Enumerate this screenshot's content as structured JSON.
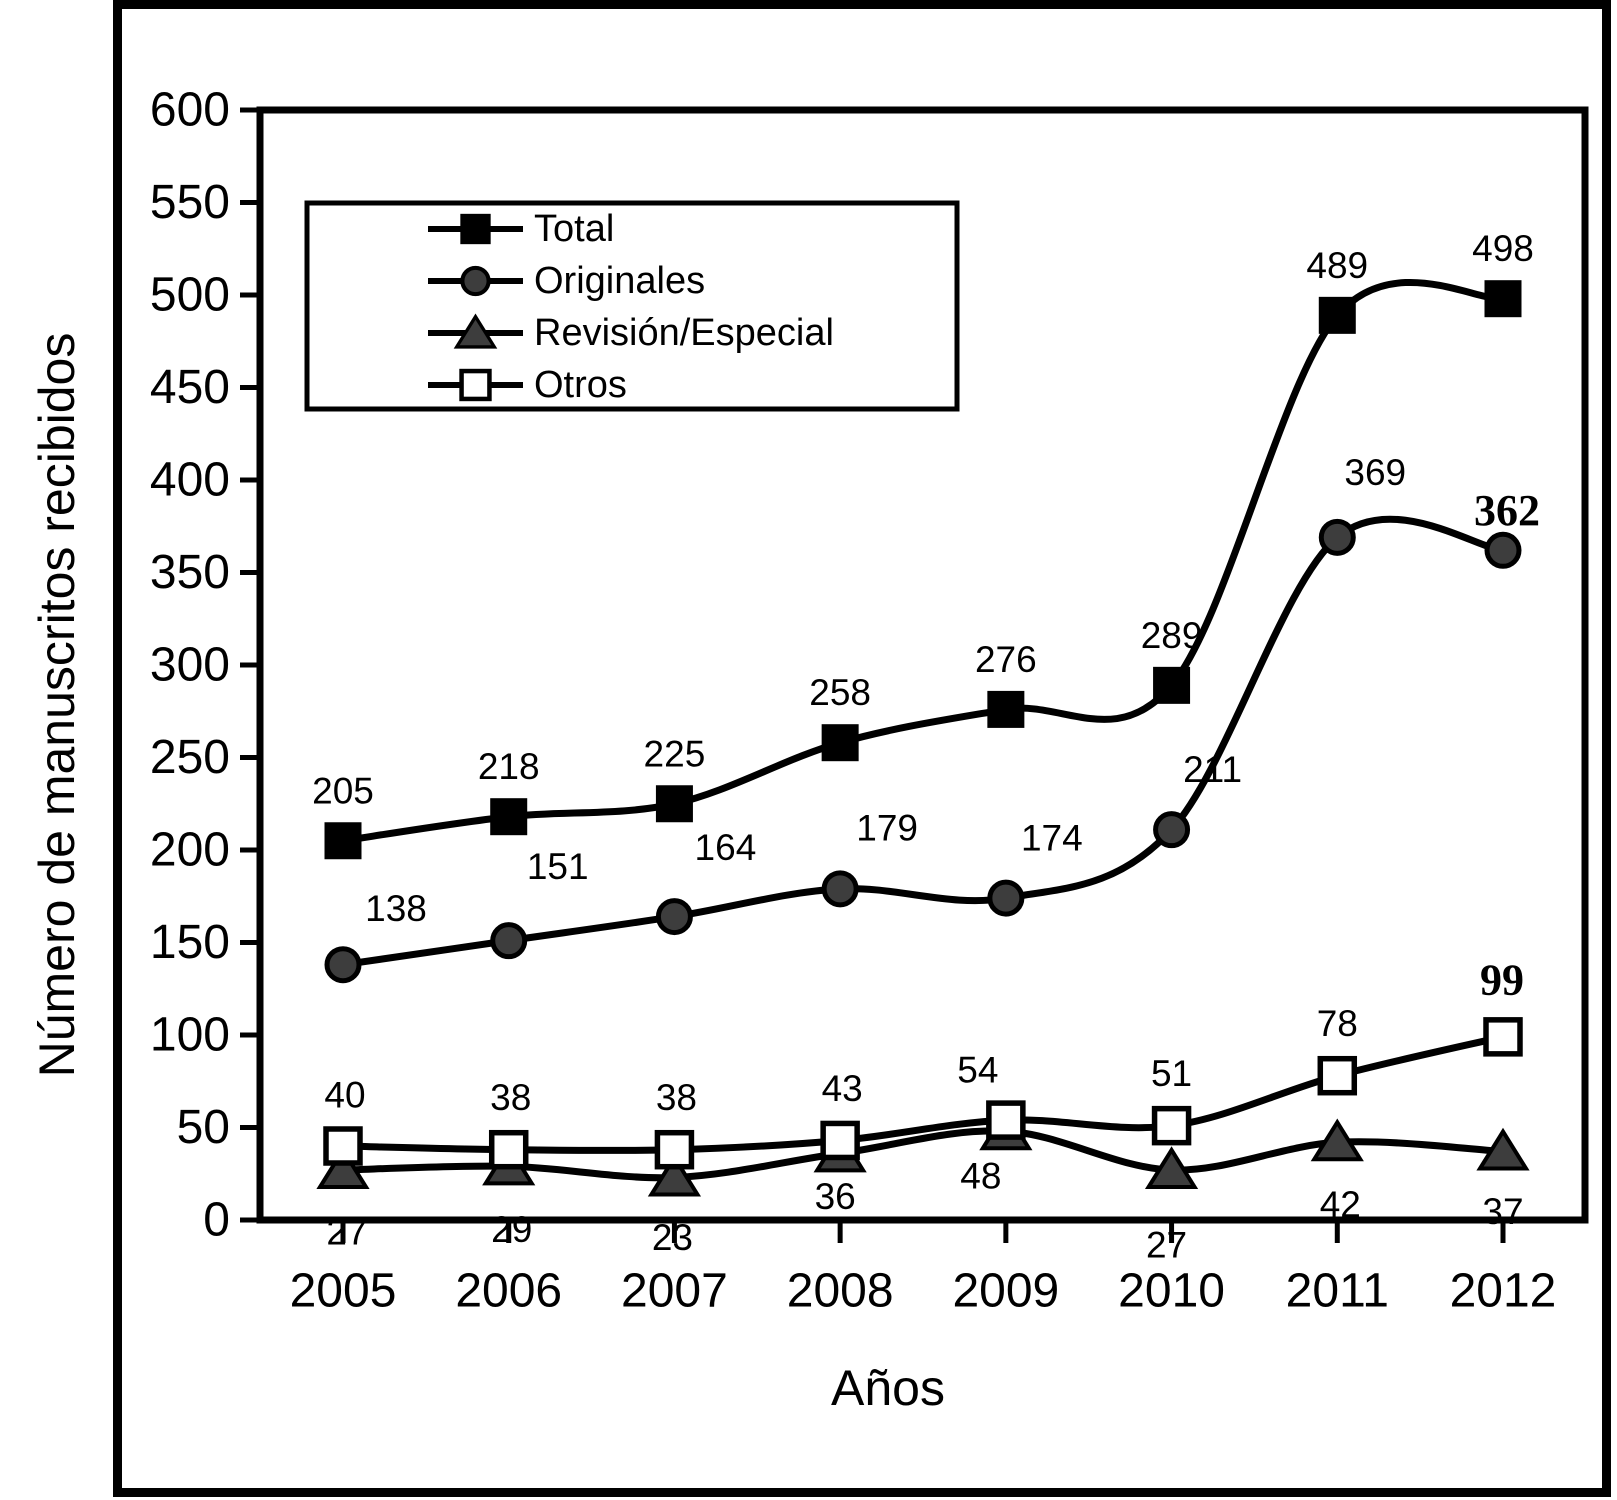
{
  "figure": {
    "background": "#ffffff",
    "border_color": "#000000"
  },
  "chart_data": {
    "type": "line",
    "title": "",
    "xlabel": "Años",
    "ylabel": "Número de manuscritos recibidos",
    "categories": [
      "2005",
      "2006",
      "2007",
      "2008",
      "2009",
      "2010",
      "2011",
      "2012"
    ],
    "ylim": [
      0,
      600
    ],
    "yticks": [
      0,
      50,
      100,
      150,
      200,
      250,
      300,
      350,
      400,
      450,
      500,
      550,
      600
    ],
    "grid": false,
    "legend_position": "top-left-inside",
    "series": [
      {
        "name": "Total",
        "marker": "filled-square",
        "line_color": "#000000",
        "fill_color": "#000000",
        "values": [
          205,
          218,
          225,
          258,
          276,
          289,
          489,
          498
        ],
        "bold_label_indices": []
      },
      {
        "name": "Originales",
        "marker": "filled-circle",
        "line_color": "#000000",
        "fill_color": "#3d3d3d",
        "values": [
          138,
          151,
          164,
          179,
          174,
          211,
          369,
          362
        ],
        "bold_label_indices": [
          7
        ]
      },
      {
        "name": "Revisión/Especial",
        "marker": "filled-triangle",
        "line_color": "#000000",
        "fill_color": "#3d3d3d",
        "values": [
          27,
          29,
          23,
          36,
          48,
          27,
          42,
          37
        ],
        "bold_label_indices": []
      },
      {
        "name": "Otros",
        "marker": "open-square",
        "line_color": "#000000",
        "fill_color": "#ffffff",
        "values": [
          40,
          38,
          38,
          43,
          54,
          51,
          78,
          99
        ],
        "bold_label_indices": [
          7
        ]
      }
    ]
  }
}
